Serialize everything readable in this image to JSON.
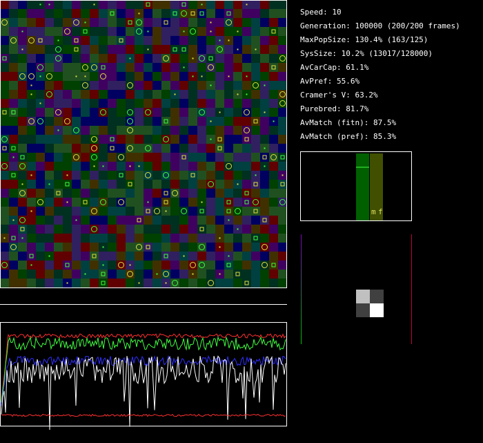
{
  "stats": [
    "Speed: 10",
    "Generation: 100000 (200/200 frames)",
    "MaxPopSize: 130.4% (163/125)",
    "SysSize: 10.2% (13017/128000)",
    "AvCarCap: 61.1%",
    "AvPref: 55.6%",
    "Cramer's V: 63.2%",
    "Purebred: 81.7%",
    "AvMatch (fitn): 87.5%",
    "AvMatch (pref): 85.3%"
  ],
  "pref_panel": {
    "label_m": "m",
    "label_f": "f"
  }
}
